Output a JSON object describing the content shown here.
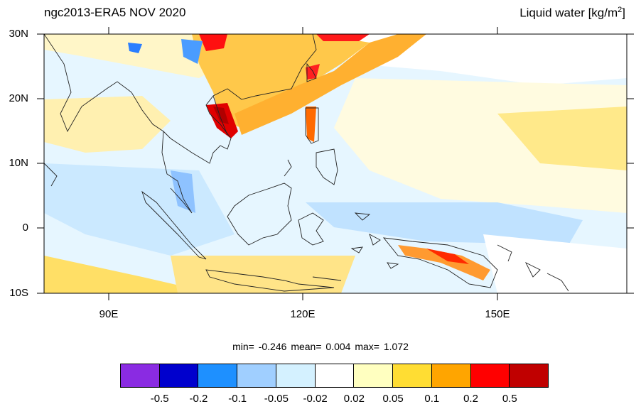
{
  "title": {
    "left": "ngc2013-ERA5 NOV 2020",
    "right_main": "Liquid water  [kg/m",
    "right_sup": "2",
    "right_end": "]"
  },
  "map": {
    "lon_range": [
      80,
      170
    ],
    "lat_range": [
      -10,
      30
    ],
    "lat_labels": [
      "30N",
      "20N",
      "10N",
      "0",
      "10S"
    ],
    "lon_labels": [
      "90E",
      "120E",
      "150E"
    ]
  },
  "stats": {
    "min_label": "min=",
    "min_value": "-0.246",
    "mean_label": "mean=",
    "mean_value": "0.004",
    "max_label": "max=",
    "max_value": "1.072"
  },
  "colorbar": {
    "colors": [
      "#8a2be2",
      "#0000cd",
      "#1e90ff",
      "#a0cfff",
      "#d4f1ff",
      "#ffffff",
      "#ffffc0",
      "#ffdd33",
      "#ffa500",
      "#ff0000",
      "#c00000"
    ],
    "labels": [
      "-0.5",
      "-0.2",
      "-0.1",
      "-0.05",
      "-0.02",
      "0.02",
      "0.05",
      "0.1",
      "0.2",
      "0.5"
    ]
  }
}
